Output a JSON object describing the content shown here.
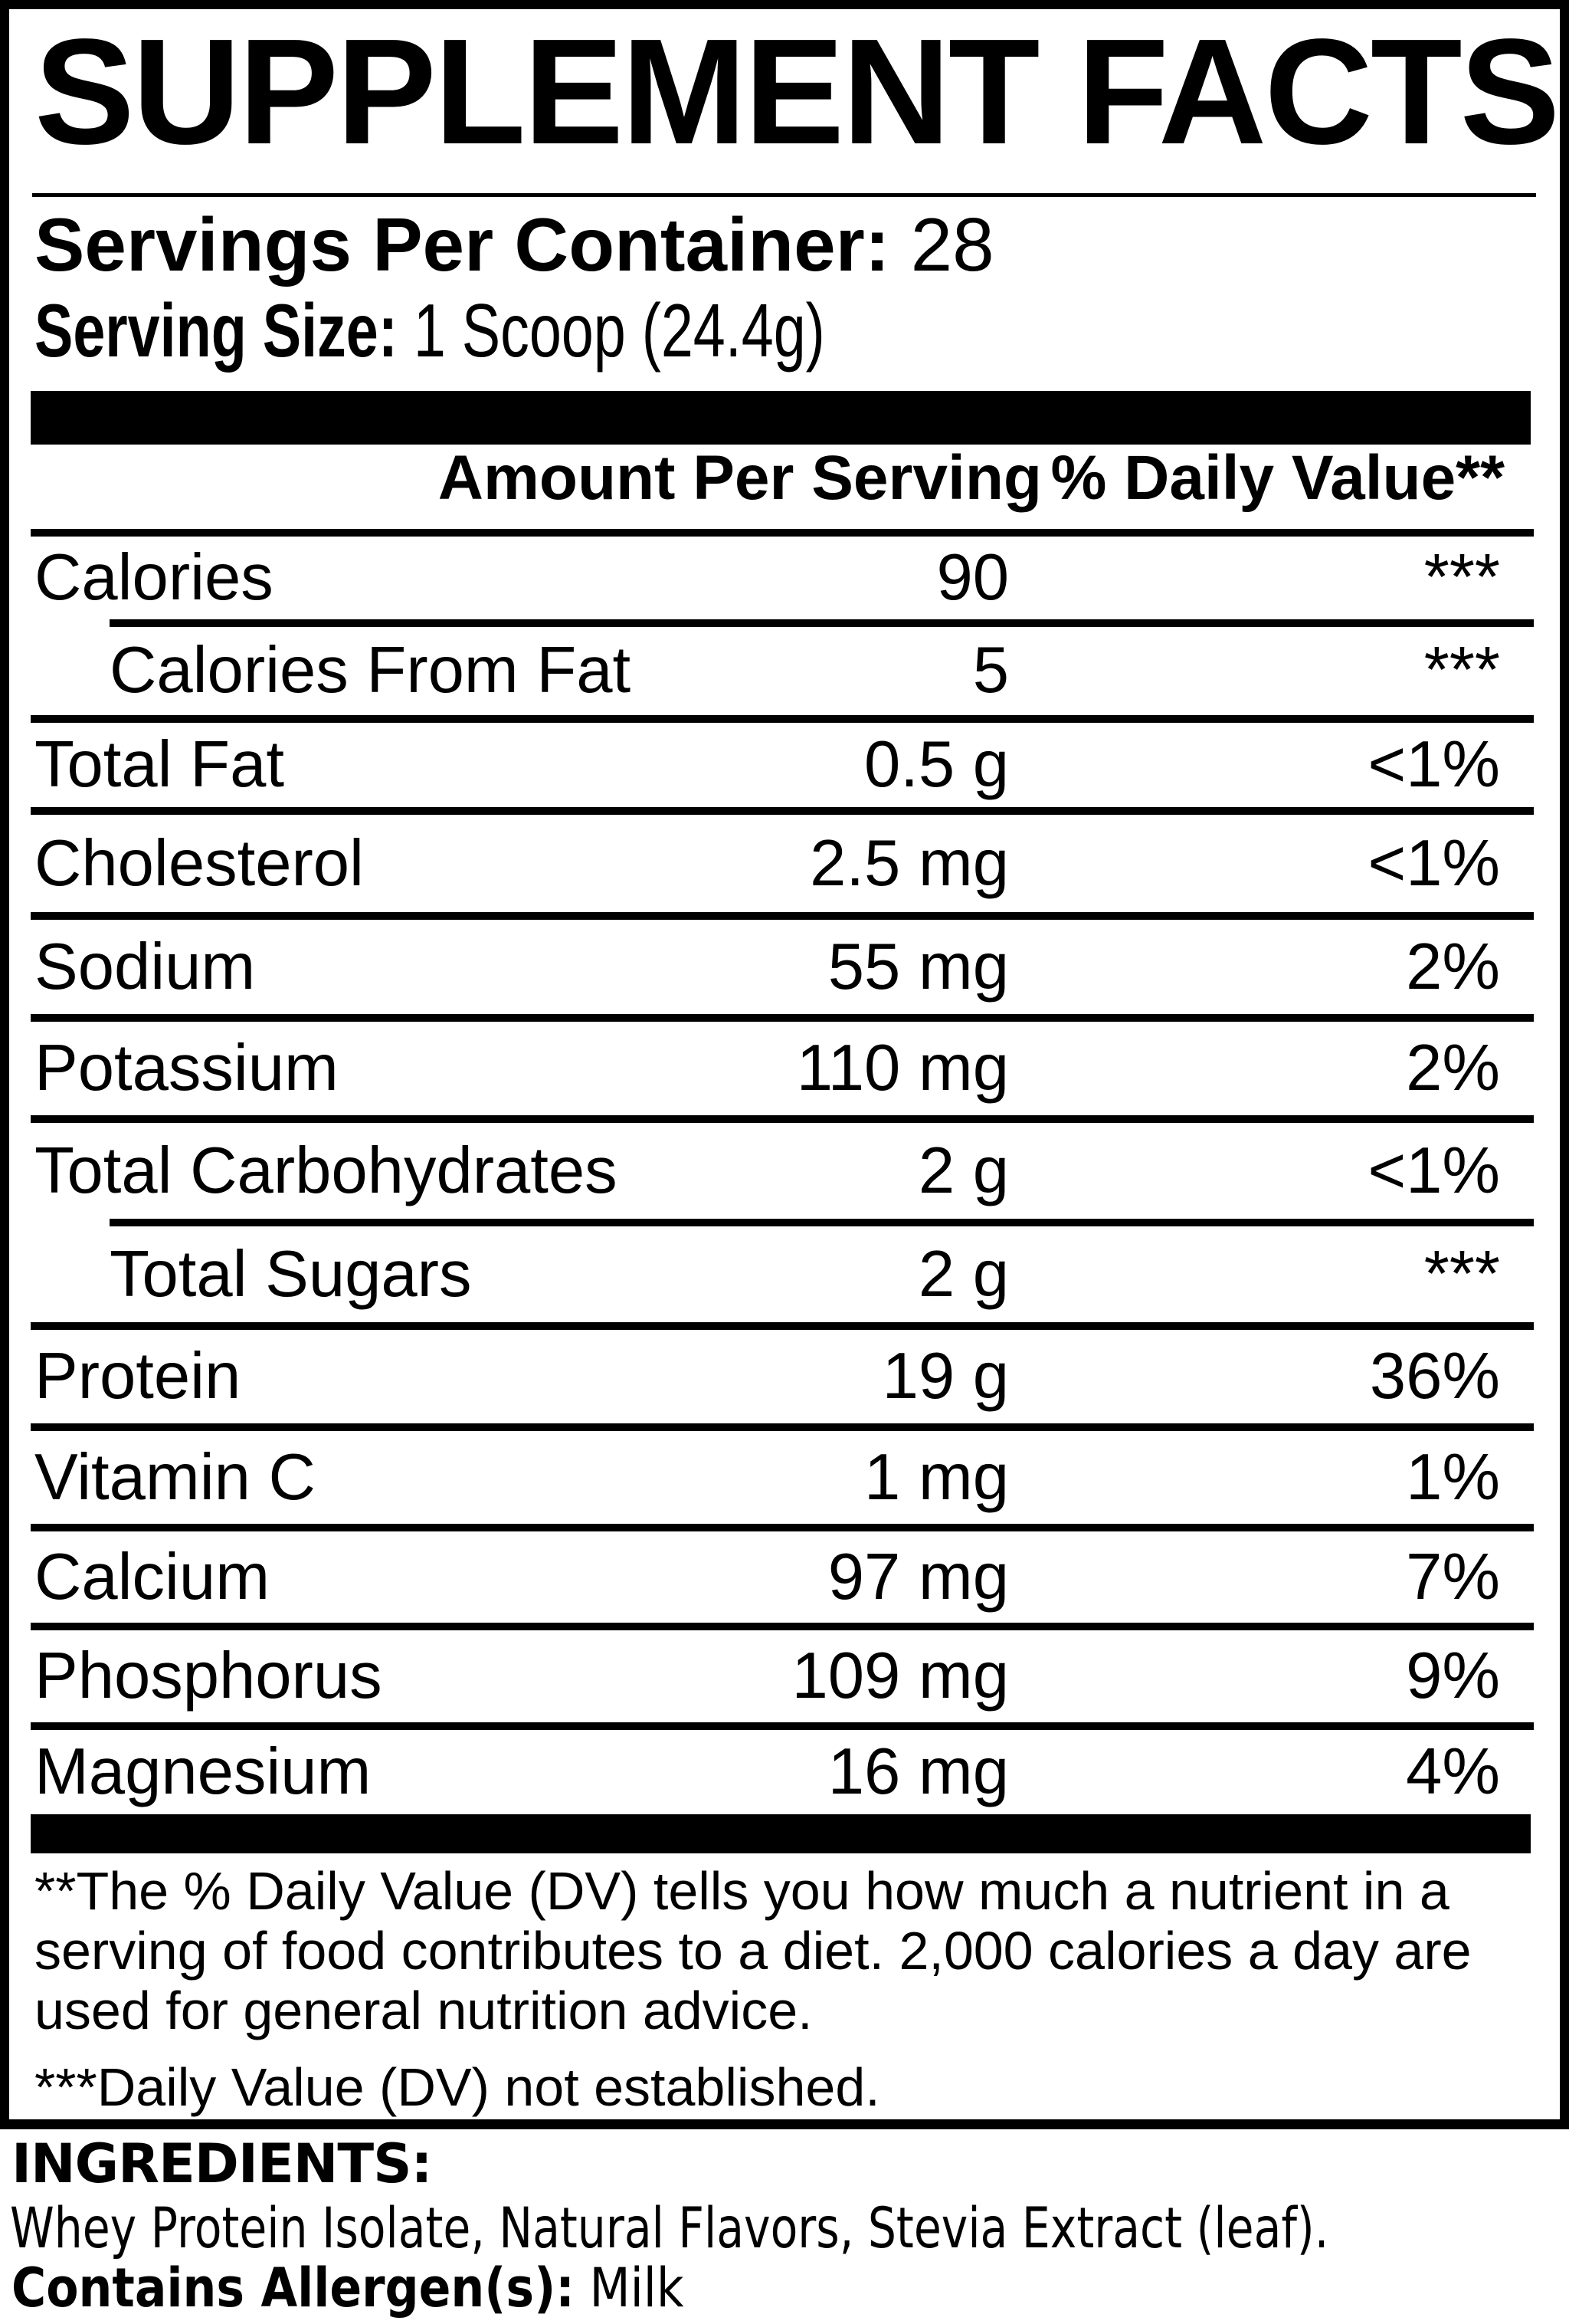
{
  "colors": {
    "ink": "#000000",
    "paper": "#ffffff"
  },
  "label": {
    "title": "SUPPLEMENT FACTS",
    "servings_per_container_label": "Servings Per Container:",
    "servings_per_container_value": "28",
    "serving_size_label": "Serving Size:",
    "serving_size_value": "1 Scoop (24.4g)",
    "header": {
      "amount": "Amount Per Serving",
      "daily_value": "% Daily Value**"
    },
    "rows": [
      {
        "name": "Calories",
        "amount": "90",
        "dv": "***",
        "indent": false
      },
      {
        "name": "Calories From Fat",
        "amount": "5",
        "dv": "***",
        "indent": true
      },
      {
        "name": "Total Fat",
        "amount": "0.5 g",
        "dv": "<1%",
        "indent": false
      },
      {
        "name": "Cholesterol",
        "amount": "2.5 mg",
        "dv": "<1%",
        "indent": false
      },
      {
        "name": "Sodium",
        "amount": "55 mg",
        "dv": "2%",
        "indent": false
      },
      {
        "name": "Potassium",
        "amount": "110 mg",
        "dv": "2%",
        "indent": false
      },
      {
        "name": "Total Carbohydrates",
        "amount": "2 g",
        "dv": "<1%",
        "indent": false
      },
      {
        "name": "Total Sugars",
        "amount": "2 g",
        "dv": "***",
        "indent": true
      },
      {
        "name": "Protein",
        "amount": "19 g",
        "dv": "36%",
        "indent": false
      },
      {
        "name": "Vitamin C",
        "amount": "1 mg",
        "dv": "1%",
        "indent": false
      },
      {
        "name": "Calcium",
        "amount": "97 mg",
        "dv": "7%",
        "indent": false
      },
      {
        "name": "Phosphorus",
        "amount": "109 mg",
        "dv": "9%",
        "indent": false
      },
      {
        "name": "Magnesium",
        "amount": "16 mg",
        "dv": "4%",
        "indent": false
      }
    ],
    "footnote_daily_value": "**The % Daily Value (DV) tells you how much a nutrient in a serving of food contributes to a diet. 2,000 calories a day are used for general nutrition advice.",
    "footnote_not_established": "***Daily Value (DV) not established."
  },
  "ingredients": {
    "heading": "INGREDIENTS:",
    "list": "Whey Protein Isolate, Natural Flavors, Stevia Extract (leaf).",
    "allergen_label": "Contains Allergen(s):",
    "allergen_value": "Milk"
  }
}
